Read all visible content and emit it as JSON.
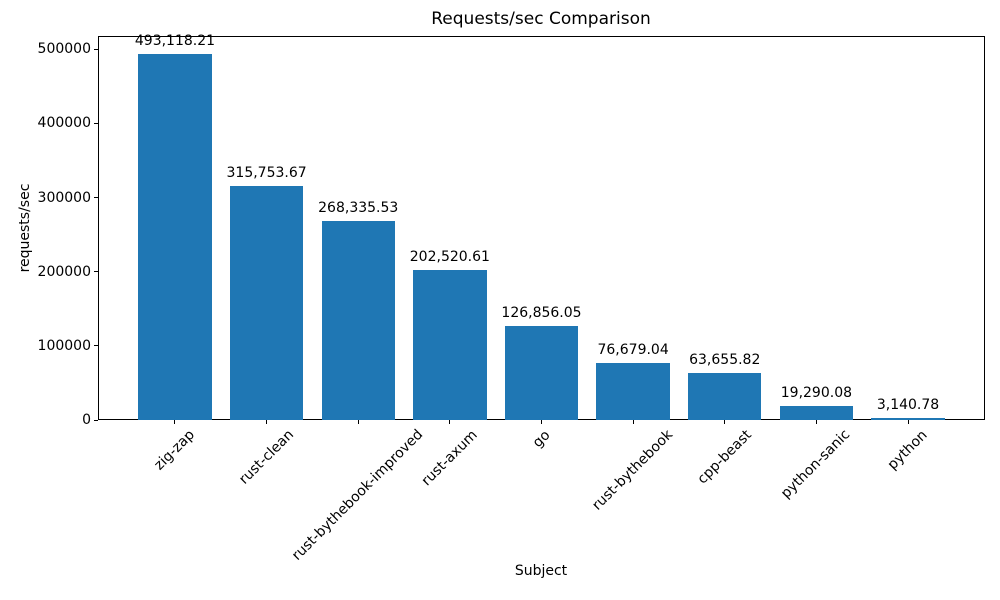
{
  "chart_data": {
    "type": "bar",
    "title": "Requests/sec Comparison",
    "xlabel": "Subject",
    "ylabel": "requests/sec",
    "categories": [
      "zig-zap",
      "rust-clean",
      "rust-bythebook-improved",
      "rust-axum",
      "go",
      "rust-bythebook",
      "cpp-beast",
      "python-sanic",
      "python"
    ],
    "values": [
      493118.21,
      315753.67,
      268335.53,
      202520.61,
      126856.05,
      76679.04,
      63655.82,
      19290.08,
      3140.78
    ],
    "value_labels": [
      "493,118.21",
      "315,753.67",
      "268,335.53",
      "202,520.61",
      "126,856.05",
      "76,679.04",
      "63,655.82",
      "19,290.08",
      "3,140.78"
    ],
    "yticks": [
      0,
      100000,
      200000,
      300000,
      400000,
      500000
    ],
    "ytick_labels": [
      "0",
      "100000",
      "200000",
      "300000",
      "400000",
      "500000"
    ],
    "ylim": [
      0,
      517774
    ],
    "bar_color": "#1f77b4",
    "grid": false,
    "legend_position": "none"
  }
}
